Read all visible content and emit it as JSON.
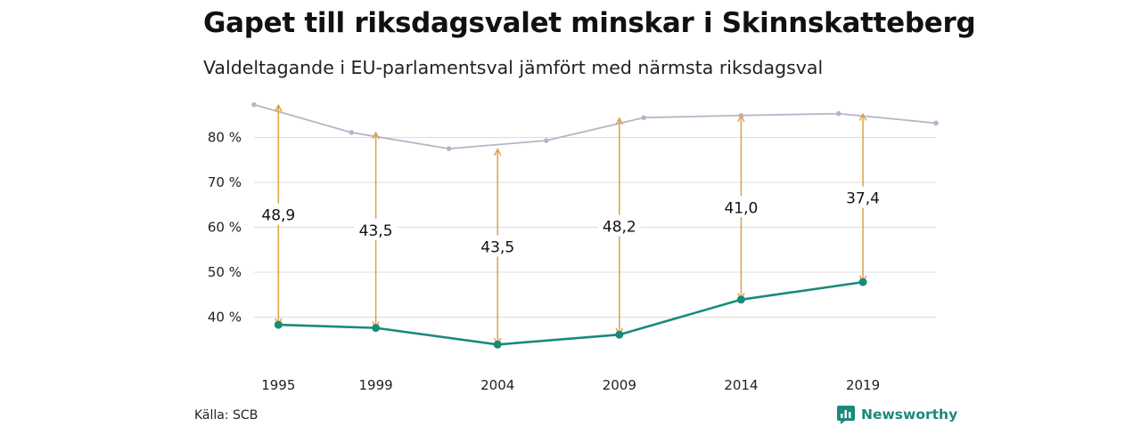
{
  "title": "Gapet till riksdagsvalet minskar i Skinnskatteberg",
  "subtitle": "Valdeltagande i EU-parlamentsval jämfört med närmsta riksdagsval",
  "source": "Källa: SCB",
  "brand": {
    "label": "Newsworthy",
    "icon": "newsworthy-logo-icon"
  },
  "colors": {
    "eu_line": "#1a8a7a",
    "riksdag_line": "#b8b4c8",
    "gap_arrow": "#d9a24a",
    "grid": "#dcdcdc"
  },
  "chart_data": {
    "type": "line",
    "xlim": [
      1994,
      2022
    ],
    "ylim": [
      30,
      90
    ],
    "x_ticks": [
      "1995",
      "1999",
      "2004",
      "2009",
      "2014",
      "2019"
    ],
    "y_ticks": [
      40,
      50,
      60,
      70,
      80
    ],
    "y_tick_labels": [
      "40 %",
      "50 %",
      "60 %",
      "70 %",
      "80 %"
    ],
    "grid": true,
    "series": [
      {
        "key": "eu",
        "x": [
          1995,
          1999,
          2004,
          2009,
          2014,
          2019
        ],
        "values": [
          38.3,
          37.6,
          33.9,
          36.1,
          43.9,
          47.8
        ]
      },
      {
        "key": "riksdag",
        "x": [
          1994,
          1998,
          2002,
          2006,
          2010,
          2014,
          2018,
          2022
        ],
        "values": [
          87.3,
          81.1,
          77.5,
          79.3,
          84.4,
          84.9,
          85.3,
          83.2
        ]
      }
    ],
    "gaps": [
      {
        "year": 1995,
        "label": "48,9",
        "from": 38.3,
        "to": 87.2
      },
      {
        "year": 1999,
        "label": "43,5",
        "from": 37.6,
        "to": 81.1
      },
      {
        "year": 2004,
        "label": "43,5",
        "from": 33.9,
        "to": 77.4
      },
      {
        "year": 2009,
        "label": "48,2",
        "from": 36.1,
        "to": 84.3
      },
      {
        "year": 2014,
        "label": "41,0",
        "from": 43.9,
        "to": 84.9
      },
      {
        "year": 2019,
        "label": "37,4",
        "from": 47.8,
        "to": 85.2
      }
    ]
  }
}
